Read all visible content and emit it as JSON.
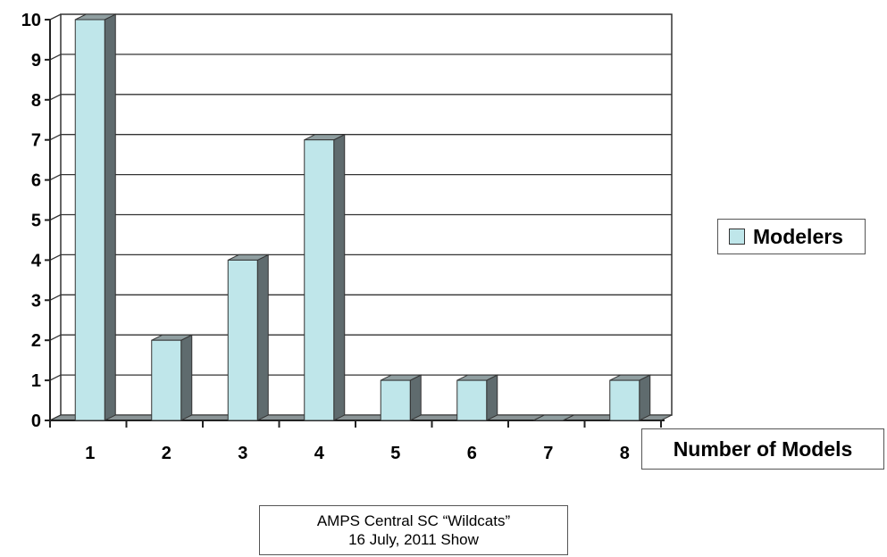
{
  "chart_data": {
    "type": "bar",
    "categories": [
      "1",
      "2",
      "3",
      "4",
      "5",
      "6",
      "7",
      "8"
    ],
    "series": [
      {
        "name": "Modelers",
        "values": [
          10,
          2,
          4,
          7,
          1,
          1,
          0,
          1
        ]
      }
    ],
    "xlabel": "Number of Models",
    "ylabel": "",
    "ylim": [
      0,
      10
    ],
    "yticks": [
      "0",
      "1",
      "2",
      "3",
      "4",
      "5",
      "6",
      "7",
      "8",
      "9",
      "10"
    ],
    "grid": true,
    "legend_position": "right",
    "caption": [
      "AMPS Central SC “Wildcats”",
      "16 July, 2011 Show"
    ],
    "colors": {
      "bar_front": "#bfe6ea",
      "bar_side": "#5f6b6e",
      "bar_top": "#8f9ea0",
      "gridline": "#333333"
    }
  }
}
